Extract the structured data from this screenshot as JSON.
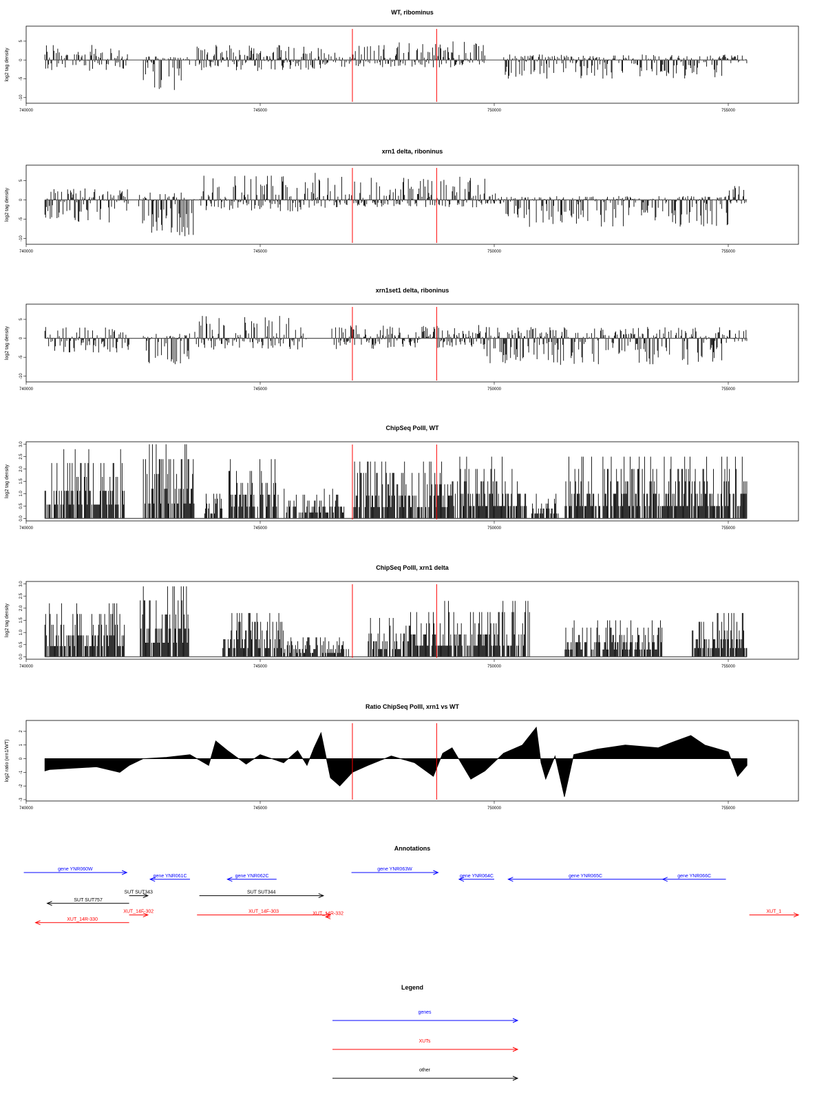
{
  "chart_data": [
    {
      "type": "bar",
      "title": "WT, ribominus",
      "ylabel": "log2 tag density",
      "xlim": [
        740000,
        756500
      ],
      "ylim": [
        -11.5,
        9
      ],
      "yticks": [
        "-10",
        "-5",
        "0",
        "5"
      ],
      "xticks": [
        "740000",
        "745000",
        "750000",
        "755000"
      ],
      "markers_x": [
        746970,
        748770
      ],
      "marker_color": "#ff0000",
      "bar_color": "#000000",
      "segments": [
        {
          "from": 740400,
          "to": 742200,
          "lo": -3,
          "hi": 4
        },
        {
          "from": 742500,
          "to": 743500,
          "lo": -8,
          "hi": 1
        },
        {
          "from": 743600,
          "to": 746350,
          "lo": -3,
          "hi": 4
        },
        {
          "from": 746350,
          "to": 747000,
          "lo": -2,
          "hi": 2
        },
        {
          "from": 747000,
          "to": 749800,
          "lo": -2,
          "hi": 5
        },
        {
          "from": 750200,
          "to": 755000,
          "lo": -5,
          "hi": 1.5
        },
        {
          "from": 755000,
          "to": 755400,
          "lo": -1,
          "hi": 2
        }
      ]
    },
    {
      "type": "bar",
      "title": "xrn1 delta, riboninus",
      "ylabel": "log2 tag density",
      "xlim": [
        740000,
        756500
      ],
      "ylim": [
        -11.5,
        9
      ],
      "yticks": [
        "-10",
        "-5",
        "0",
        "5"
      ],
      "xticks": [
        "740000",
        "745000",
        "750000",
        "755000"
      ],
      "markers_x": [
        746970,
        748770
      ],
      "marker_color": "#ff0000",
      "bar_color": "#000000",
      "segments": [
        {
          "from": 740400,
          "to": 742200,
          "lo": -6,
          "hi": 3
        },
        {
          "from": 742400,
          "to": 743600,
          "lo": -10,
          "hi": 2
        },
        {
          "from": 743700,
          "to": 746500,
          "lo": -3,
          "hi": 7
        },
        {
          "from": 746550,
          "to": 749800,
          "lo": -2,
          "hi": 6
        },
        {
          "from": 749800,
          "to": 750250,
          "lo": -1,
          "hi": 2
        },
        {
          "from": 750250,
          "to": 755000,
          "lo": -7,
          "hi": 1
        },
        {
          "from": 755000,
          "to": 755400,
          "lo": -1,
          "hi": 4
        }
      ]
    },
    {
      "type": "bar",
      "title": "xrn1set1 delta, riboninus",
      "ylabel": "log2 tag density",
      "xlim": [
        740000,
        756500
      ],
      "ylim": [
        -11.5,
        9
      ],
      "yticks": [
        "-10",
        "-5",
        "0",
        "5"
      ],
      "xticks": [
        "740000",
        "745000",
        "750000",
        "755000"
      ],
      "markers_x": [
        746970,
        748770
      ],
      "marker_color": "#ff0000",
      "bar_color": "#000000",
      "segments": [
        {
          "from": 740400,
          "to": 742200,
          "lo": -4,
          "hi": 3
        },
        {
          "from": 742500,
          "to": 743500,
          "lo": -7,
          "hi": 1.5
        },
        {
          "from": 743600,
          "to": 746000,
          "lo": -3,
          "hi": 6
        },
        {
          "from": 746500,
          "to": 749800,
          "lo": -3,
          "hi": 3.5
        },
        {
          "from": 749800,
          "to": 755000,
          "lo": -7,
          "hi": 3
        },
        {
          "from": 755000,
          "to": 755400,
          "lo": -1,
          "hi": 3
        }
      ]
    },
    {
      "type": "bar",
      "title": "ChipSeq PolII, WT",
      "ylabel": "log2 tag density",
      "xlim": [
        740000,
        756500
      ],
      "ylim": [
        -0.1,
        3.1
      ],
      "yticks": [
        "0.0",
        "0.5",
        "1.0",
        "1.5",
        "2.0",
        "2.5",
        "3.0"
      ],
      "xticks": [
        "740000",
        "745000",
        "750000",
        "755000"
      ],
      "markers_x": [
        746970,
        748770
      ],
      "marker_color": "#ff0000",
      "bar_color": "#000000",
      "segments": [
        {
          "from": 740400,
          "to": 742100,
          "lo": 0,
          "hi": 2.8
        },
        {
          "from": 742500,
          "to": 743600,
          "lo": 0,
          "hi": 3.0
        },
        {
          "from": 743800,
          "to": 744200,
          "lo": 0,
          "hi": 1.0
        },
        {
          "from": 744300,
          "to": 745400,
          "lo": 0,
          "hi": 2.4
        },
        {
          "from": 745500,
          "to": 746800,
          "lo": 0,
          "hi": 1.2
        },
        {
          "from": 747000,
          "to": 749100,
          "lo": 0,
          "hi": 2.3
        },
        {
          "from": 749100,
          "to": 750700,
          "lo": 0,
          "hi": 2.5
        },
        {
          "from": 750800,
          "to": 751400,
          "lo": 0,
          "hi": 1.0
        },
        {
          "from": 751500,
          "to": 755400,
          "lo": 0,
          "hi": 2.5
        }
      ]
    },
    {
      "type": "bar",
      "title": "ChipSeq PolII, xrn1 delta",
      "ylabel": "log2 tag density",
      "xlim": [
        740000,
        756500
      ],
      "ylim": [
        -0.1,
        3.1
      ],
      "yticks": [
        "0.0",
        "0.5",
        "1.0",
        "1.5",
        "2.0",
        "2.5",
        "3.0"
      ],
      "xticks": [
        "740000",
        "745000",
        "750000",
        "755000"
      ],
      "markers_x": [
        746970,
        748770
      ],
      "marker_color": "#ff0000",
      "bar_color": "#000000",
      "segments": [
        {
          "from": 740400,
          "to": 742100,
          "lo": 0,
          "hi": 2.2
        },
        {
          "from": 742400,
          "to": 743500,
          "lo": 0,
          "hi": 2.9
        },
        {
          "from": 744200,
          "to": 745500,
          "lo": 0,
          "hi": 1.8
        },
        {
          "from": 745500,
          "to": 746900,
          "lo": 0,
          "hi": 0.8
        },
        {
          "from": 747300,
          "to": 748200,
          "lo": 0,
          "hi": 1.6
        },
        {
          "from": 748200,
          "to": 750800,
          "lo": 0,
          "hi": 2.3
        },
        {
          "from": 751500,
          "to": 753600,
          "lo": 0,
          "hi": 1.5
        },
        {
          "from": 754200,
          "to": 755400,
          "lo": 0,
          "hi": 1.8
        }
      ]
    },
    {
      "type": "area",
      "title": "Ratio ChipSeq PolII, xrn1 vs WT",
      "ylabel": "log2 ratio (xrn1/WT)",
      "xlim": [
        740000,
        756500
      ],
      "ylim": [
        -3.1,
        2.8
      ],
      "yticks": [
        "-3",
        "-2",
        "-1",
        "0",
        "1",
        "2"
      ],
      "xticks": [
        "740000",
        "745000",
        "750000",
        "755000"
      ],
      "markers_x": [
        746970,
        748770
      ],
      "marker_color": "#ff0000",
      "fill_color": "#000000",
      "x": [
        740400,
        740500,
        741000,
        741500,
        742000,
        742200,
        742500,
        743000,
        743500,
        743900,
        744050,
        744300,
        744700,
        745000,
        745500,
        745800,
        746000,
        746150,
        746300,
        746500,
        746700,
        746970,
        747300,
        747800,
        748300,
        748700,
        748900,
        749100,
        749500,
        749800,
        750200,
        750600,
        750900,
        751000,
        751100,
        751300,
        751500,
        751700,
        752200,
        752800,
        753500,
        753800,
        754200,
        754500,
        755000,
        755200,
        755400
      ],
      "y": [
        -0.9,
        -0.8,
        -0.7,
        -0.6,
        -1.0,
        -0.5,
        0.0,
        0.1,
        0.3,
        -0.5,
        1.3,
        0.6,
        -0.4,
        0.3,
        -0.3,
        0.6,
        -0.5,
        0.8,
        1.9,
        -1.4,
        -2.0,
        -1.0,
        -0.5,
        0.2,
        -0.3,
        -1.3,
        0.4,
        0.8,
        -1.5,
        -0.9,
        0.4,
        1.0,
        2.3,
        -0.3,
        -1.5,
        0.2,
        -2.8,
        0.3,
        0.7,
        1.0,
        0.8,
        1.2,
        1.7,
        1.0,
        0.5,
        -1.3,
        -0.5
      ]
    },
    {
      "type": "other",
      "title": "Annotations",
      "xlim": [
        740000,
        756500
      ],
      "features": [
        {
          "label": "gene YNR060W",
          "from": 739950,
          "to": 742150,
          "strand": "+",
          "row": 0,
          "color": "#0000ff"
        },
        {
          "label": "gene YNR061C",
          "from": 742650,
          "to": 743500,
          "strand": "-",
          "row": 0.35,
          "color": "#0000ff"
        },
        {
          "label": "gene YNR062C",
          "from": 744300,
          "to": 745350,
          "strand": "-",
          "row": 0.35,
          "color": "#0000ff"
        },
        {
          "label": "gene YNR063W",
          "from": 746950,
          "to": 748800,
          "strand": "+",
          "row": 0,
          "color": "#0000ff"
        },
        {
          "label": "gene YNR064C",
          "from": 749250,
          "to": 750000,
          "strand": "-",
          "row": 0.35,
          "color": "#0000ff"
        },
        {
          "label": "gene YNR065C",
          "from": 750300,
          "to": 753600,
          "strand": "-",
          "row": 0.35,
          "color": "#0000ff"
        },
        {
          "label": "gene YNR066C",
          "from": 753600,
          "to": 754950,
          "strand": "-",
          "row": 0.35,
          "color": "#0000ff"
        },
        {
          "label": "SUT SUT343",
          "from": 742200,
          "to": 742600,
          "strand": "+",
          "row": 1.2,
          "color": "#000000"
        },
        {
          "label": "SUT SUT757",
          "from": 740450,
          "to": 742200,
          "strand": "-",
          "row": 1.6,
          "color": "#000000"
        },
        {
          "label": "SUT SUT344",
          "from": 743700,
          "to": 746350,
          "strand": "+",
          "row": 1.2,
          "color": "#000000"
        },
        {
          "label": "XUT_14F-302",
          "from": 742200,
          "to": 742600,
          "strand": "+",
          "row": 2.2,
          "color": "#ff0000"
        },
        {
          "label": "XUT_14R-330",
          "from": 740200,
          "to": 742200,
          "strand": "-",
          "row": 2.6,
          "color": "#ff0000"
        },
        {
          "label": "XUT_14F-303",
          "from": 743650,
          "to": 746500,
          "strand": "+",
          "row": 2.2,
          "color": "#ff0000"
        },
        {
          "label": "XUT_14R-332",
          "from": 746400,
          "to": 746500,
          "strand": "-",
          "row": 2.3,
          "color": "#ff0000"
        },
        {
          "label": "XUT_1",
          "from": 755450,
          "to": 756500,
          "strand": "+",
          "row": 2.2,
          "color": "#ff0000"
        }
      ]
    },
    {
      "type": "other",
      "title": "Legend",
      "entries": [
        {
          "label": "genes",
          "color": "#0000ff"
        },
        {
          "label": "XUTs",
          "color": "#ff0000"
        },
        {
          "label": "other",
          "color": "#000000"
        }
      ]
    }
  ]
}
